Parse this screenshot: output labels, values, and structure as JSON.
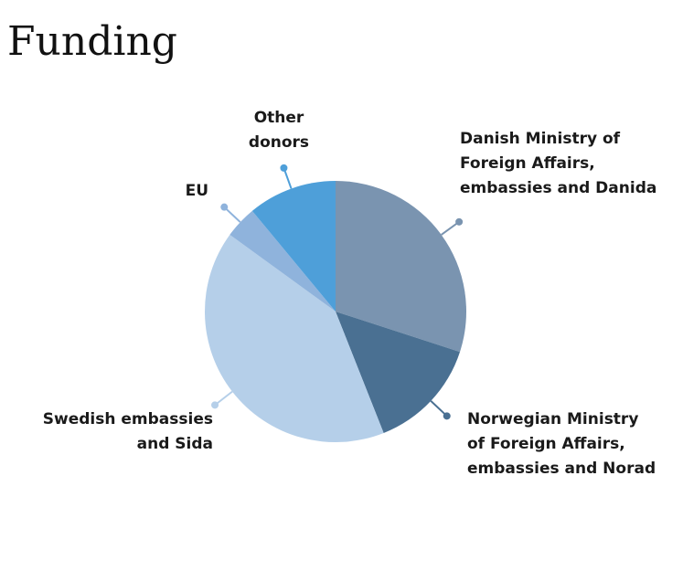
{
  "chart_data": {
    "type": "pie",
    "title": "Funding",
    "categories": [
      [
        "Danish Ministry of",
        "Foreign Affairs,",
        "embassies and Danida"
      ],
      [
        "Norwegian Ministry",
        "of Foreign Affairs,",
        "embassies and Norad"
      ],
      [
        "Swedish embassies",
        "and Sida"
      ],
      [
        "EU"
      ],
      [
        "Other",
        "donors"
      ]
    ],
    "values": [
      30,
      14,
      41,
      4,
      11
    ],
    "colors": [
      "#7a94b0",
      "#4a7092",
      "#b5cfe9",
      "#8fb3dc",
      "#4e9fd9"
    ]
  }
}
